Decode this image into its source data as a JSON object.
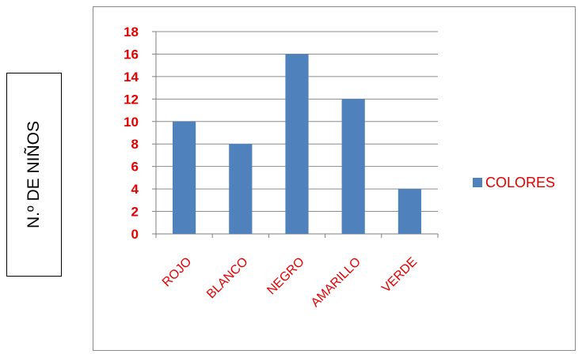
{
  "ylabel": "N.º DE NIÑOS",
  "colors": {
    "bar": "#4f81bd",
    "text_red": "#e00000",
    "grid": "#8c8c8c",
    "axis": "#7f7f7f"
  },
  "chart_data": {
    "type": "bar",
    "categories": [
      "ROJO",
      "BLANCO",
      "NEGRO",
      "AMARILLO",
      "VERDE"
    ],
    "series": [
      {
        "name": "COLORES",
        "values": [
          10,
          8,
          16,
          12,
          4
        ]
      }
    ],
    "ylabel": "N.º DE NIÑOS",
    "ylim": [
      0,
      18
    ],
    "yticks": [
      0,
      2,
      4,
      6,
      8,
      10,
      12,
      14,
      16,
      18
    ],
    "grid": true,
    "legend": "right"
  }
}
